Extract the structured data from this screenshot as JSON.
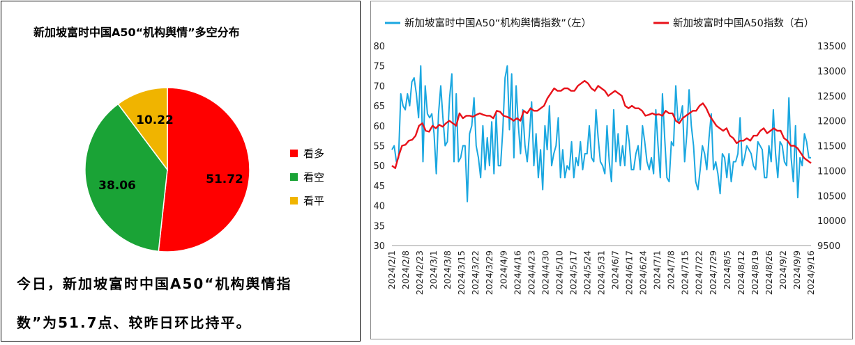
{
  "pie_panel": {
    "title": "新加坡富时中国A50“机构舆情”多空分布",
    "summary_line1": "今日，新加坡富时中国A50“机构舆情指",
    "summary_line2": "数”为51.7点、较昨日环比持平。"
  },
  "line_panel": {
    "legend": [
      {
        "label": "新加坡富时中国A50“机构舆情指数”（左）",
        "color": "#1aa7e0"
      },
      {
        "label": "新加坡富时中国A50指数（右）",
        "color": "#e8121a"
      }
    ]
  },
  "chart_data": [
    {
      "type": "pie",
      "title": "新加坡富时中国A50“机构舆情”多空分布",
      "slices": [
        {
          "label": "看多",
          "value": 51.72,
          "display": "51.72",
          "color": "#ff0000"
        },
        {
          "label": "看空",
          "value": 38.06,
          "display": "38.06",
          "color": "#1aa336"
        },
        {
          "label": "看平",
          "value": 10.22,
          "display": "10.22",
          "color": "#f0b400"
        }
      ]
    },
    {
      "type": "line",
      "x_tick_labels": [
        "2024/2/1",
        "2024/2/8",
        "2024/2/23",
        "2024/3/1",
        "2024/3/8",
        "2024/3/15",
        "2024/3/22",
        "2024/3/29",
        "2024/4/9",
        "2024/4/16",
        "2024/4/23",
        "2024/4/30",
        "2024/5/10",
        "2024/5/17",
        "2024/5/24",
        "2024/5/31",
        "2024/6/7",
        "2024/6/17",
        "2024/6/24",
        "2024/7/1",
        "2024/7/8",
        "2024/7/15",
        "2024/7/22",
        "2024/7/29",
        "2024/8/5",
        "2024/8/12",
        "2024/8/19",
        "2024/8/26",
        "2024/9/2",
        "2024/9/9",
        "2024/9/16"
      ],
      "y_left": {
        "min": 30,
        "max": 80,
        "step": 5
      },
      "y_right": {
        "min": 9500,
        "max": 13500,
        "step": 500
      },
      "series": [
        {
          "name": "新加坡富时中国A50“机构舆情指数”（左）",
          "axis": "left",
          "color": "#1aa7e0",
          "values": [
            54,
            55,
            51,
            52,
            68,
            65,
            64,
            68,
            65,
            71,
            72,
            68,
            62,
            75,
            51,
            70,
            63,
            62,
            63,
            58,
            48,
            63,
            70,
            62,
            55,
            56,
            67,
            73,
            51,
            68,
            51,
            52,
            55,
            55,
            41,
            58,
            60,
            67,
            55,
            52,
            47,
            60,
            49,
            57,
            50,
            61,
            48,
            63,
            50,
            50,
            59,
            72,
            75,
            59,
            73,
            52,
            70,
            60,
            53,
            64,
            55,
            51,
            58,
            66,
            50,
            58,
            47,
            54,
            44,
            60,
            54,
            65,
            50,
            53,
            55,
            62,
            47,
            54,
            47,
            50,
            49,
            56,
            47,
            52,
            50,
            56,
            49,
            53,
            53,
            60,
            52,
            51,
            64,
            57,
            51,
            50,
            48,
            60,
            51,
            46,
            64,
            51,
            58,
            50,
            55,
            50,
            60,
            56,
            49,
            49,
            53,
            55,
            49,
            60,
            56,
            51,
            49,
            52,
            48,
            64,
            55,
            47,
            68,
            57,
            47,
            46,
            56,
            55,
            70,
            61,
            62,
            65,
            51,
            58,
            69,
            60,
            55,
            46,
            44,
            49,
            55,
            53,
            49,
            57,
            63,
            49,
            51,
            48,
            43,
            53,
            52,
            47,
            53,
            46,
            51,
            51,
            53,
            62,
            50,
            52,
            55,
            54,
            53,
            50,
            49,
            56,
            55,
            54,
            47,
            47,
            55,
            51,
            64,
            53,
            47,
            56,
            55,
            51,
            50,
            67,
            52,
            46,
            60,
            42,
            52,
            50,
            58,
            56,
            52,
            52
          ]
        },
        {
          "name": "新加坡富时中国A50指数（右）",
          "axis": "right",
          "color": "#e8121a",
          "values": [
            11100,
            11050,
            11300,
            11500,
            11520,
            11600,
            11620,
            11700,
            11900,
            11950,
            11800,
            11780,
            11900,
            11850,
            11920,
            11880,
            11950,
            12000,
            11950,
            11900,
            12150,
            12050,
            12100,
            12100,
            12080,
            12120,
            12150,
            12120,
            12100,
            12100,
            12050,
            12200,
            12180,
            12100,
            12080,
            12050,
            12000,
            12050,
            12000,
            12200,
            12150,
            12250,
            12200,
            12200,
            12250,
            12300,
            12450,
            12550,
            12650,
            12600,
            12600,
            12650,
            12650,
            12600,
            12600,
            12700,
            12750,
            12800,
            12750,
            12650,
            12600,
            12700,
            12650,
            12600,
            12500,
            12550,
            12600,
            12550,
            12500,
            12300,
            12250,
            12300,
            12250,
            12250,
            12200,
            12100,
            12120,
            12150,
            12120,
            12130,
            12100,
            12200,
            12150,
            12150,
            12000,
            11950,
            12050,
            12100,
            12150,
            12200,
            12200,
            12300,
            12350,
            12250,
            12100,
            12000,
            11900,
            11850,
            11800,
            11850,
            11700,
            11650,
            11550,
            11600,
            11600,
            11650,
            11600,
            11700,
            11700,
            11800,
            11850,
            11750,
            11800,
            11850,
            11800,
            11800,
            11650,
            11600,
            11500,
            11500,
            11450,
            11350,
            11250,
            11200,
            11150
          ]
        }
      ]
    }
  ]
}
